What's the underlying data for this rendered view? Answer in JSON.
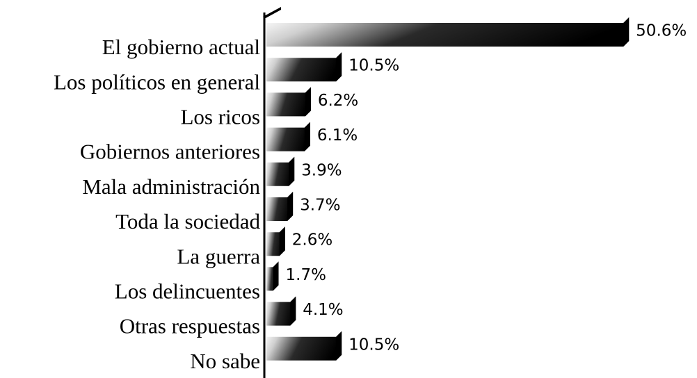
{
  "chart_data": {
    "type": "bar",
    "orientation": "horizontal",
    "categories": [
      "El gobierno actual",
      "Los políticos en general",
      "Los ricos",
      "Gobiernos anteriores",
      "Mala administración",
      "Toda la sociedad",
      "La guerra",
      "Los delincuentes",
      "Otras respuestas",
      "No sabe"
    ],
    "values": [
      50.6,
      10.5,
      6.2,
      6.1,
      3.9,
      3.7,
      2.6,
      1.7,
      4.1,
      10.5
    ],
    "value_labels": [
      "50.6%",
      "10.5%",
      "6.2%",
      "6.1%",
      "3.9%",
      "3.7%",
      "2.6%",
      "1.7%",
      "4.1%",
      "10.5%"
    ],
    "color": "#000000"
  }
}
